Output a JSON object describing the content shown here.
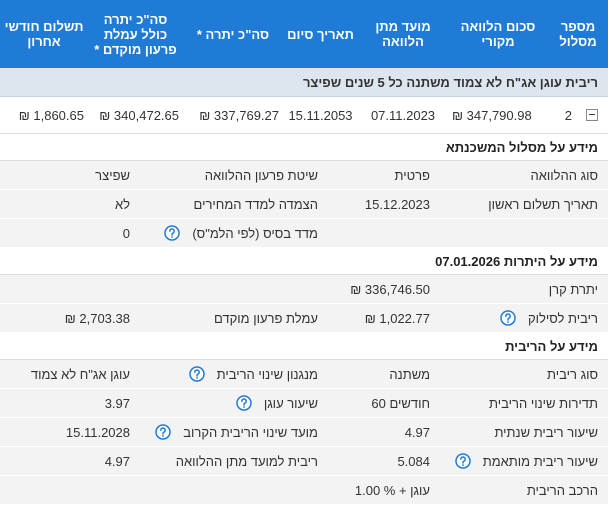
{
  "table": {
    "headers": [
      "מספר מסלול",
      "סכום הלוואה מקורי",
      "מועד מתן הלוואה",
      "תאריך סיום",
      "סה\"כ יתרה *",
      "סה\"כ יתרה כולל עמלת פרעון מוקדם *",
      "תשלום חודשי אחרון"
    ],
    "group": "ריבית עוגן אג\"ח לא צמוד משתנה כל 5 שנים שפיצר",
    "row": [
      "2",
      "₪ 347,790.98",
      "07.11.2023",
      "15.11.2053",
      "₪ 337,769.27",
      "₪ 340,472.65",
      "₪ 1,860.65"
    ]
  },
  "sections": [
    {
      "title": "מידע על מסלול המשכנתא",
      "rows": [
        {
          "right": {
            "label": "סוג ההלוואה",
            "value": "פרטית"
          },
          "left": {
            "label": "שיטת פרעון ההלוואה",
            "value": "שפיצר"
          }
        },
        {
          "right": {
            "label": "תאריך תשלום ראשון",
            "value": "15.12.2023"
          },
          "left": {
            "label": "הצמדה למדד המחירים",
            "value": "לא"
          }
        },
        {
          "left": {
            "label": "מדד בסיס (לפי הלמ\"ס)",
            "value": "0"
          }
        }
      ]
    },
    {
      "title": "מידע על היתרות 07.01.2026",
      "rows": [
        {
          "right": {
            "label": "יתרת קרן",
            "value": "₪ 336,746.50"
          }
        },
        {
          "right": {
            "label": "ריבית לסילוק",
            "value": "₪ 1,022.77"
          },
          "left": {
            "label": "עמלת פרעון מוקדם",
            "value": "₪ 2,703.38"
          }
        }
      ]
    },
    {
      "title": "מידע על הריבית",
      "rows": [
        {
          "right": {
            "label": "סוג ריבית",
            "value": "משתנה"
          },
          "left": {
            "label": "מנגנון שינוי הריבית",
            "value": "עוגן אג\"ח לא צמוד"
          }
        },
        {
          "right": {
            "label": "תדירות שינוי הריבית",
            "value": "60 חודשים"
          },
          "left": {
            "label": "שיעור עוגן",
            "value": "3.97"
          }
        },
        {
          "right": {
            "label": "שיעור ריבית שנתית",
            "value": "4.97"
          },
          "left": {
            "label": "מועד שינוי הריבית הקרוב",
            "value": "15.11.2028"
          }
        },
        {
          "right": {
            "label": "שיעור ריבית מותאמת",
            "value": "5.084"
          },
          "left": {
            "label": "ריבית למועד מתן ההלוואה",
            "value": "4.97"
          }
        },
        {
          "right": {
            "label": "הרכב הריבית",
            "value": "עוגן + % 1.00"
          }
        }
      ]
    }
  ]
}
